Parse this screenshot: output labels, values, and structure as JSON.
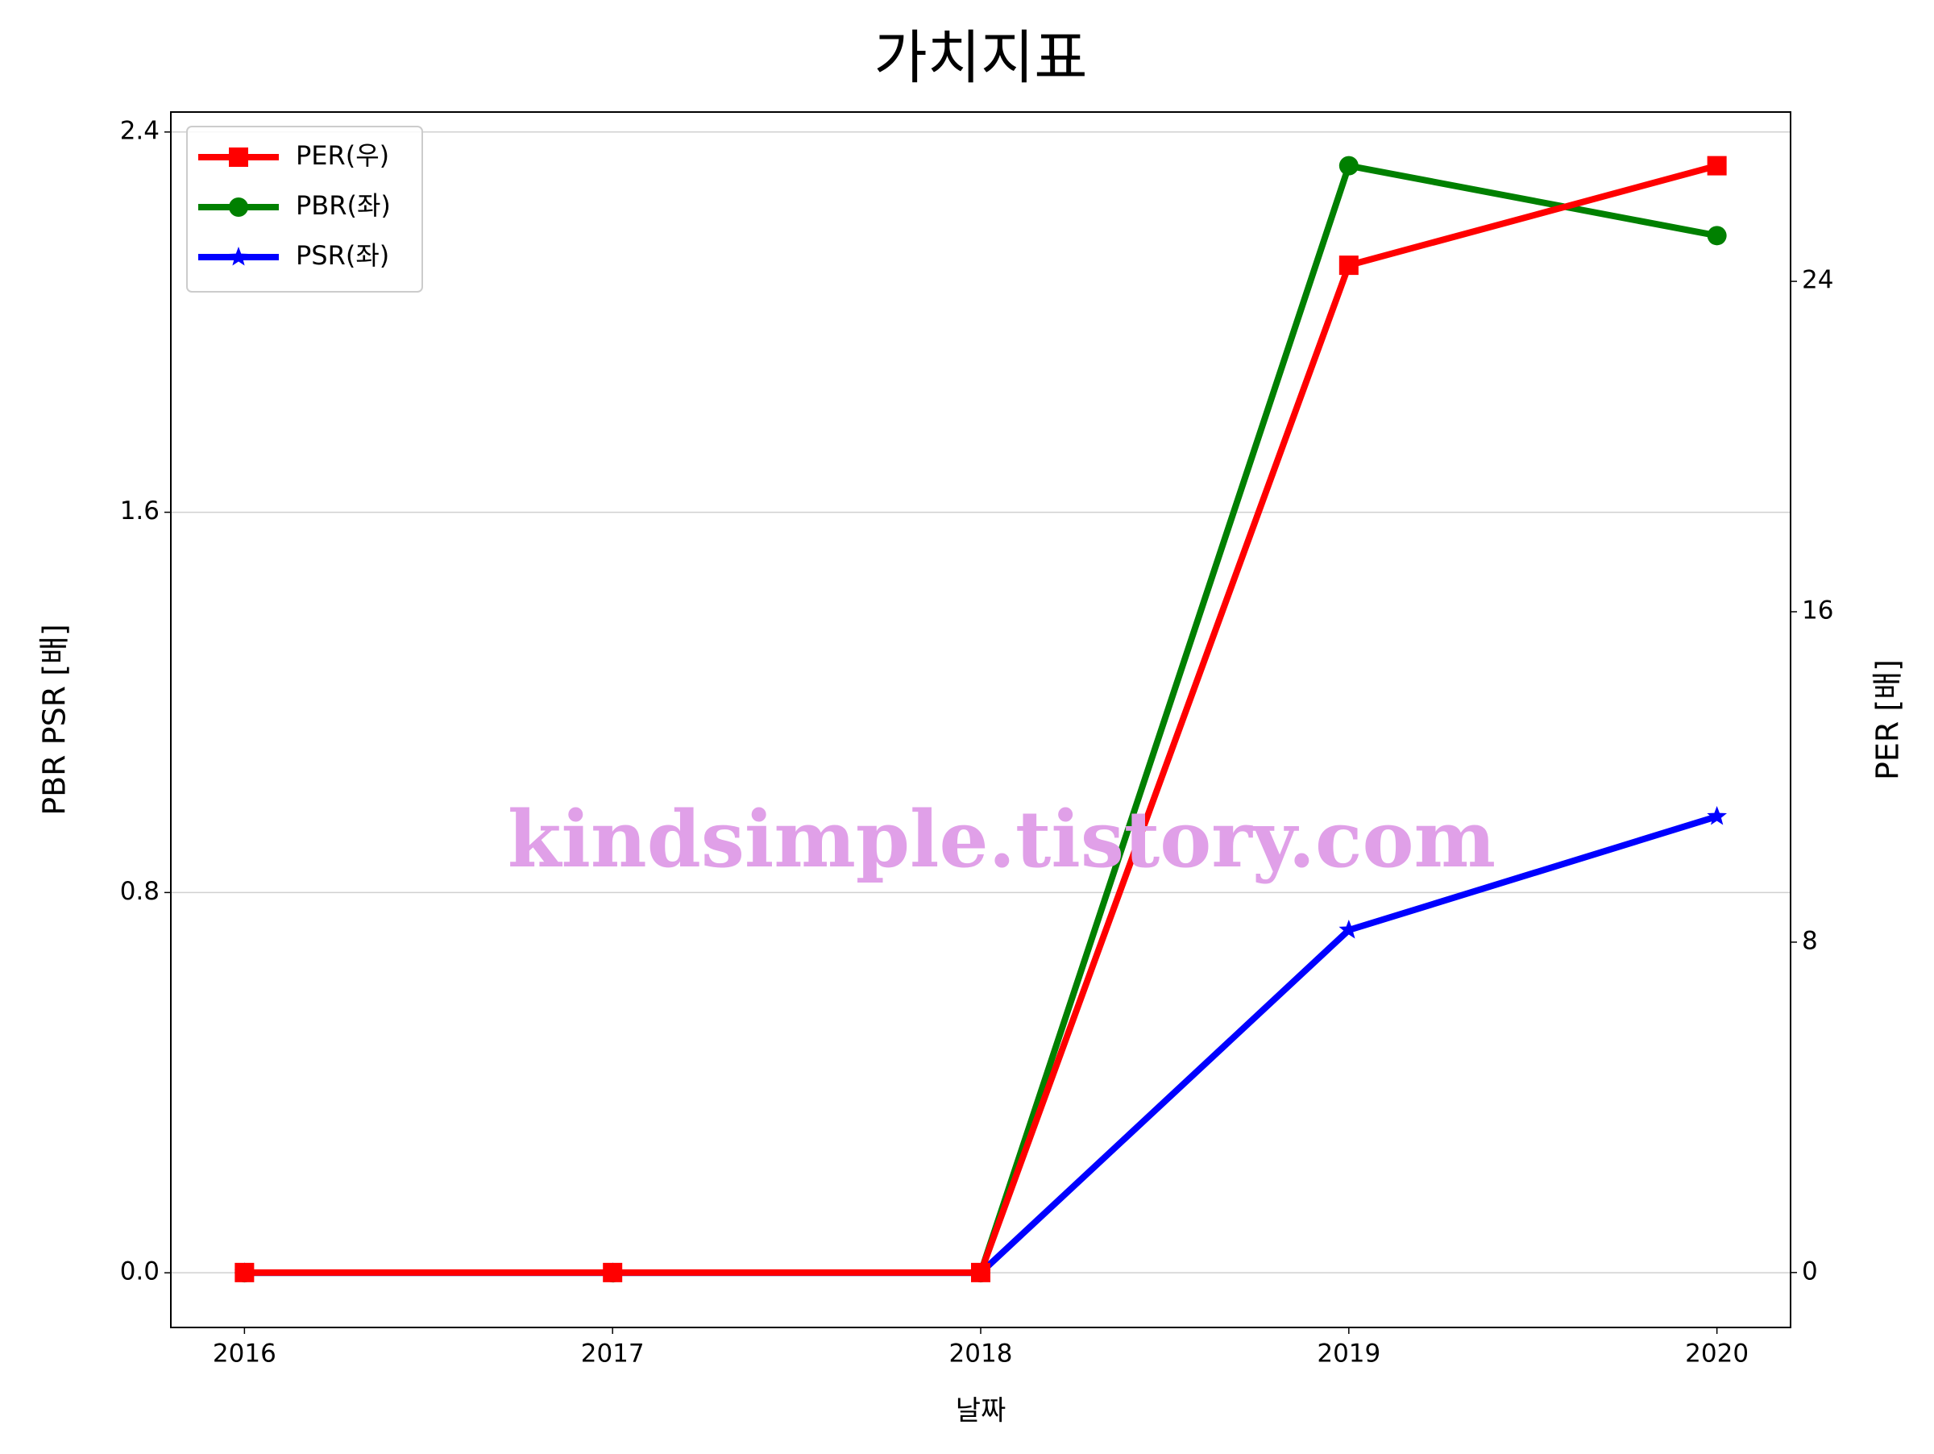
{
  "chart_data": {
    "type": "line",
    "title": "가치지표",
    "x_label": "날짜",
    "y_label": "PBR PSR [배]",
    "y2_label": "PER [배]",
    "y_label_color": "#008000",
    "y2_label_color": "#ff0000",
    "annotation": "kindsimple.tistory.com",
    "annotation_color": "#e0a0e8",
    "x": [
      2016,
      2017,
      2018,
      2019,
      2020
    ],
    "xlim": [
      2015.8,
      2020.2
    ],
    "xticks": [
      2016,
      2017,
      2018,
      2019,
      2020
    ],
    "ylim": [
      -0.115,
      2.442
    ],
    "yticks": [
      {
        "value": 0,
        "label": "0.0"
      },
      0.8,
      1.6,
      2.4
    ],
    "y2lim": [
      -1.33,
      28.1
    ],
    "y2ticks": [
      0,
      8,
      16,
      24
    ],
    "grid": true,
    "legend": "upper left",
    "series": [
      {
        "name": "PER(우)",
        "color": "#ff0000",
        "marker": "square",
        "axis": "y2",
        "values": [
          0,
          0,
          0,
          24.39,
          26.8
        ]
      },
      {
        "name": "PBR(좌)",
        "color": "#008000",
        "marker": "circle",
        "values": [
          0,
          0,
          0,
          2.329,
          2.182
        ]
      },
      {
        "name": "PSR(좌)",
        "color": "#0000ff",
        "marker": "star",
        "values": [
          0,
          0,
          0,
          0.721,
          0.96
        ]
      }
    ]
  }
}
